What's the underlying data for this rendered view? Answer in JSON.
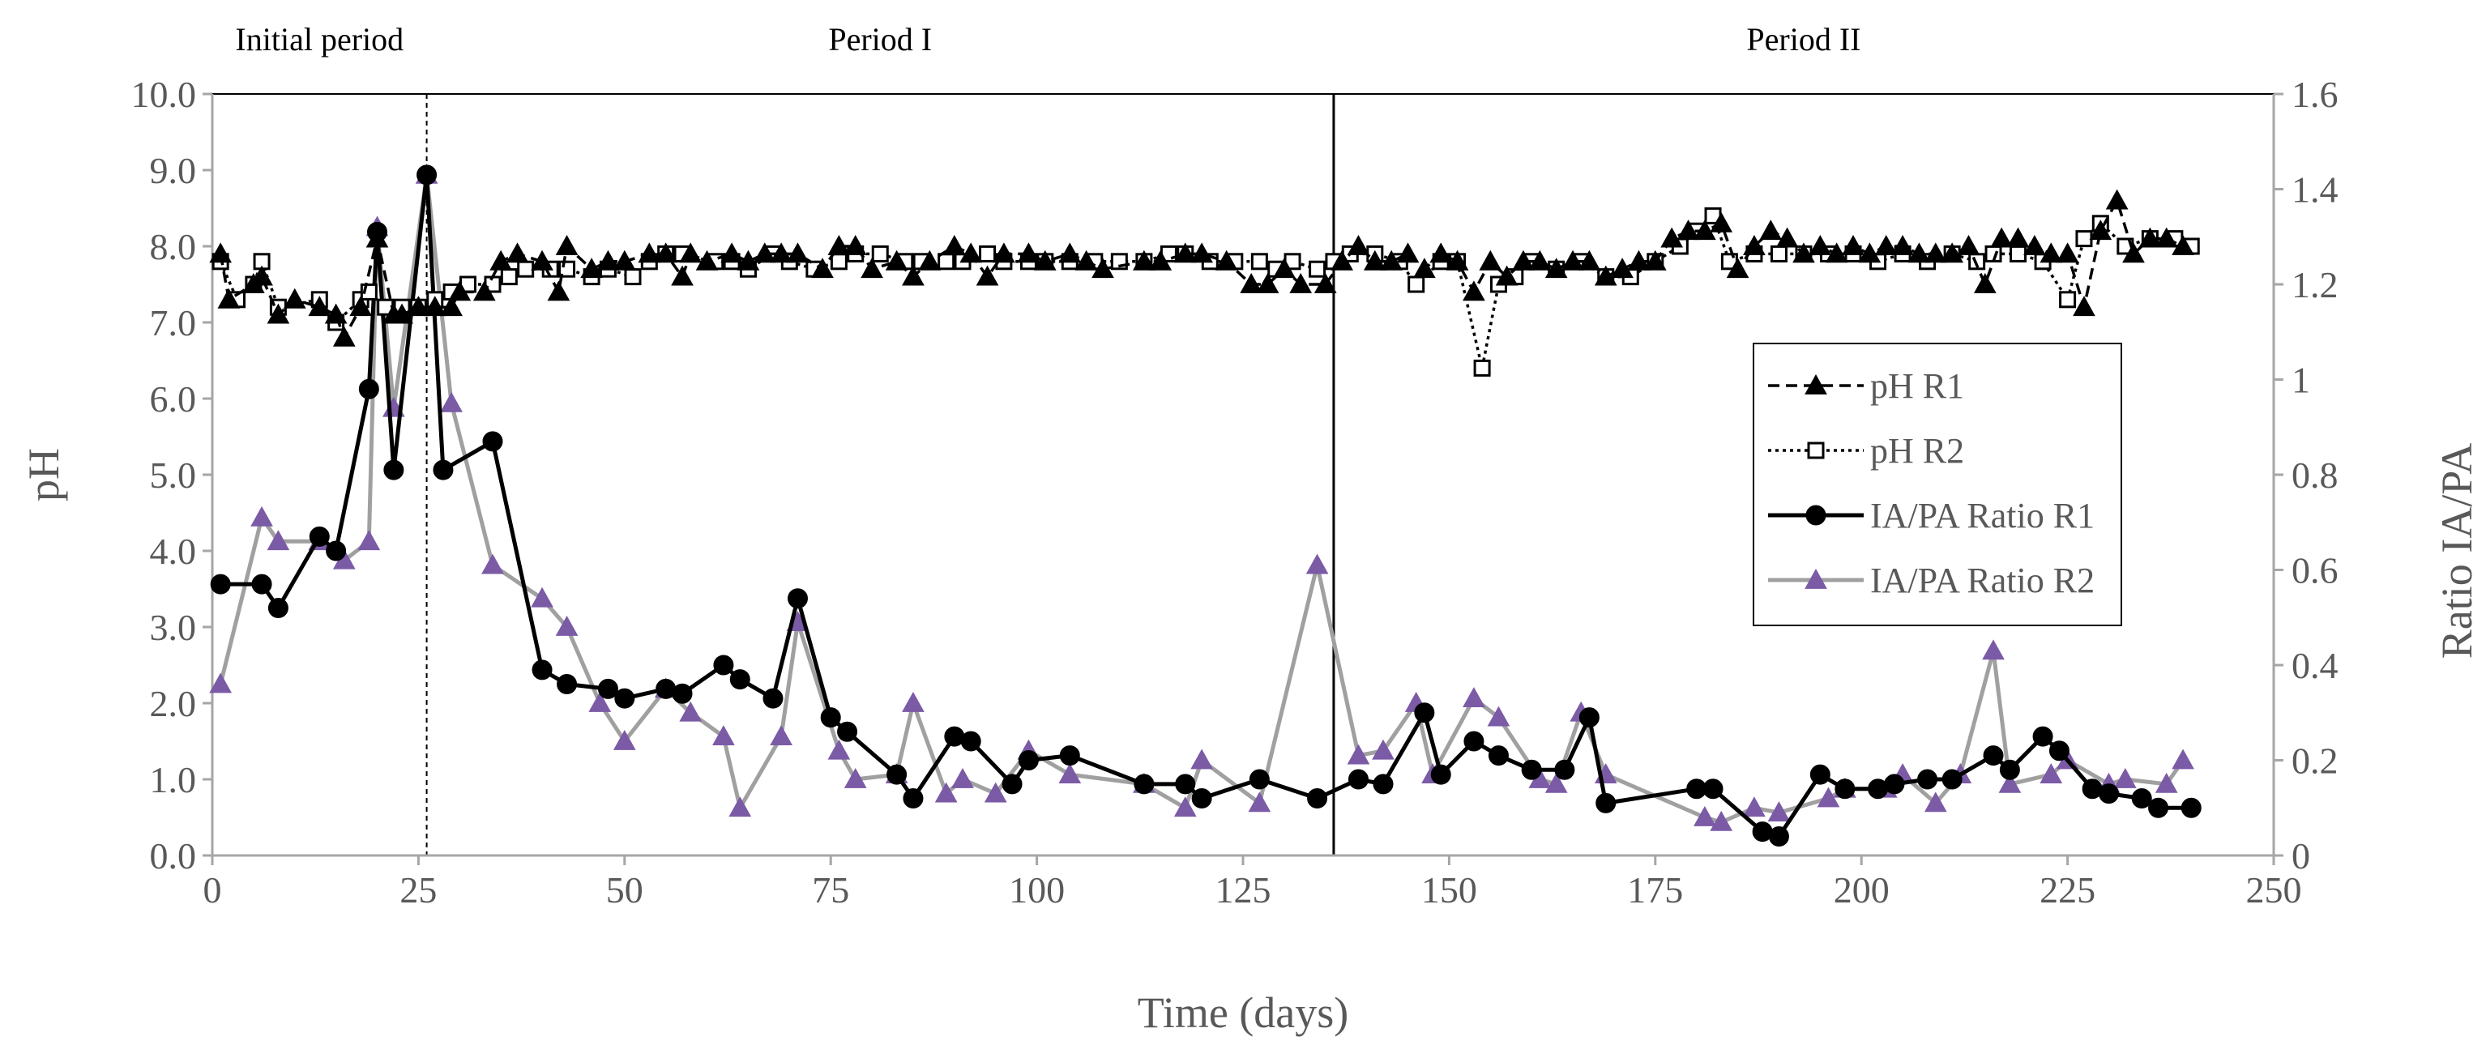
{
  "chart_data": {
    "type": "line",
    "title": "",
    "xlabel": "Time (days)",
    "ylabel_left": "pH",
    "ylabel_right": "Ratio  IA/PA",
    "xlim": [
      0,
      250
    ],
    "ylim_left": [
      0,
      10
    ],
    "ylim_right": [
      0,
      1.6
    ],
    "grid": false,
    "x_ticks": [
      "0",
      "25",
      "50",
      "75",
      "100",
      "125",
      "150",
      "175",
      "200",
      "225",
      "250"
    ],
    "y_left_ticks": [
      "0.0",
      "1.0",
      "2.0",
      "3.0",
      "4.0",
      "5.0",
      "6.0",
      "7.0",
      "8.0",
      "9.0",
      "10.0"
    ],
    "y_right_ticks": [
      "0",
      "0.2",
      "0.4",
      "0.6",
      "0.8",
      "1",
      "1.2",
      "1.4",
      "1.6"
    ],
    "periods": [
      {
        "label": "Initial period",
        "x_start": 0,
        "x_end": 26
      },
      {
        "label": "Period I",
        "x_start": 26,
        "x_end": 136
      },
      {
        "label": "Period II",
        "x_start": 136,
        "x_end": 250
      }
    ],
    "dividers": [
      {
        "x": 26,
        "style": "dashed"
      },
      {
        "x": 136,
        "style": "solid"
      }
    ],
    "legend_position": "right",
    "series": [
      {
        "name": "pH R1",
        "axis": "left",
        "color": "#000000",
        "line": "dashed",
        "marker": "triangle",
        "x": [
          1,
          2,
          5,
          6,
          8,
          10,
          13,
          15,
          16,
          18,
          20,
          22,
          23,
          25,
          27,
          29,
          30,
          33,
          35,
          37,
          40,
          42,
          43,
          46,
          48,
          50,
          53,
          55,
          57,
          58,
          60,
          63,
          65,
          67,
          69,
          71,
          74,
          76,
          78,
          80,
          83,
          85,
          87,
          90,
          92,
          94,
          96,
          99,
          101,
          104,
          106,
          108,
          113,
          115,
          118,
          120,
          123,
          126,
          128,
          130,
          132,
          135,
          137,
          139,
          141,
          143,
          145,
          147,
          149,
          151,
          153,
          155,
          157,
          159,
          161,
          163,
          165,
          167,
          169,
          171,
          173,
          175,
          177,
          179,
          181,
          183,
          185,
          187,
          189,
          191,
          193,
          195,
          197,
          199,
          201,
          203,
          205,
          207,
          209,
          211,
          213,
          215,
          217,
          219,
          221,
          223,
          225,
          227,
          229,
          231,
          233,
          235,
          237,
          239
        ],
        "y": [
          7.9,
          7.3,
          7.5,
          7.6,
          7.1,
          7.3,
          7.2,
          7.1,
          6.8,
          7.2,
          8.1,
          7.1,
          7.1,
          7.2,
          7.2,
          7.2,
          7.4,
          7.4,
          7.8,
          7.9,
          7.8,
          7.4,
          8.0,
          7.7,
          7.8,
          7.8,
          7.9,
          7.9,
          7.6,
          7.9,
          7.8,
          7.9,
          7.8,
          7.9,
          7.9,
          7.9,
          7.7,
          8.0,
          8.0,
          7.7,
          7.8,
          7.6,
          7.8,
          8.0,
          7.9,
          7.6,
          7.9,
          7.9,
          7.8,
          7.9,
          7.8,
          7.7,
          7.8,
          7.8,
          7.9,
          7.9,
          7.8,
          7.5,
          7.5,
          7.7,
          7.5,
          7.5,
          7.8,
          8.0,
          7.8,
          7.8,
          7.9,
          7.7,
          7.9,
          7.8,
          7.4,
          7.8,
          7.6,
          7.8,
          7.8,
          7.7,
          7.8,
          7.8,
          7.6,
          7.7,
          7.8,
          7.8,
          8.1,
          8.2,
          8.2,
          8.3,
          7.7,
          8.0,
          8.2,
          8.1,
          7.9,
          8.0,
          7.9,
          8.0,
          7.9,
          8.0,
          8.0,
          7.9,
          7.9,
          7.9,
          8.0,
          7.5,
          8.1,
          8.1,
          8.0,
          7.9,
          7.9,
          7.2,
          8.2,
          8.6,
          7.9,
          8.1,
          8.1,
          8.0
        ]
      },
      {
        "name": "pH R2",
        "axis": "left",
        "color": "#000000",
        "line": "dotted",
        "marker": "square-open",
        "x": [
          1,
          3,
          5,
          6,
          8,
          13,
          15,
          18,
          19,
          21,
          23,
          25,
          27,
          29,
          31,
          34,
          36,
          38,
          41,
          43,
          46,
          48,
          51,
          53,
          55,
          57,
          61,
          63,
          65,
          68,
          70,
          73,
          76,
          78,
          81,
          84,
          86,
          89,
          91,
          94,
          96,
          99,
          101,
          104,
          107,
          110,
          113,
          116,
          118,
          121,
          124,
          127,
          129,
          131,
          134,
          136,
          138,
          141,
          144,
          146,
          149,
          151,
          154,
          156,
          158,
          160,
          163,
          166,
          169,
          172,
          175,
          178,
          180,
          182,
          184,
          187,
          190,
          193,
          196,
          199,
          202,
          205,
          208,
          211,
          214,
          216,
          219,
          222,
          225,
          227,
          229,
          232,
          235,
          238,
          240
        ],
        "y": [
          7.8,
          7.3,
          7.5,
          7.8,
          7.2,
          7.3,
          7.0,
          7.3,
          7.4,
          7.2,
          7.2,
          7.2,
          7.3,
          7.4,
          7.5,
          7.5,
          7.6,
          7.7,
          7.7,
          7.7,
          7.6,
          7.7,
          7.6,
          7.8,
          7.9,
          7.9,
          7.8,
          7.8,
          7.7,
          7.9,
          7.8,
          7.7,
          7.8,
          7.9,
          7.9,
          7.8,
          7.8,
          7.8,
          7.8,
          7.9,
          7.8,
          7.8,
          7.8,
          7.8,
          7.8,
          7.8,
          7.8,
          7.9,
          7.9,
          7.8,
          7.8,
          7.8,
          7.7,
          7.8,
          7.7,
          7.8,
          7.9,
          7.9,
          7.8,
          7.5,
          7.8,
          7.8,
          6.4,
          7.5,
          7.6,
          7.8,
          7.7,
          7.8,
          7.6,
          7.6,
          7.8,
          8.0,
          8.2,
          8.4,
          7.8,
          7.9,
          7.9,
          7.9,
          7.9,
          7.9,
          7.8,
          7.9,
          7.8,
          7.9,
          7.8,
          7.9,
          7.9,
          7.8,
          7.3,
          8.1,
          8.3,
          8.0,
          8.1,
          8.1,
          8.0
        ]
      },
      {
        "name": "IA/PA Ratio  R1",
        "axis": "right",
        "color": "#000000",
        "line": "solid",
        "marker": "circle",
        "x": [
          1,
          6,
          8,
          13,
          15,
          19,
          20,
          22,
          26,
          28,
          34,
          40,
          43,
          48,
          50,
          55,
          57,
          62,
          64,
          68,
          71,
          75,
          77,
          83,
          85,
          90,
          92,
          97,
          99,
          104,
          113,
          118,
          120,
          127,
          134,
          139,
          142,
          147,
          149,
          153,
          156,
          160,
          164,
          167,
          169,
          180,
          182,
          188,
          190,
          195,
          198,
          202,
          204,
          208,
          211,
          216,
          218,
          222,
          224,
          228,
          230,
          234,
          236,
          240
        ],
        "y": [
          0.57,
          0.57,
          0.52,
          0.67,
          0.64,
          0.98,
          1.31,
          0.81,
          1.43,
          0.81,
          0.87,
          0.39,
          0.36,
          0.35,
          0.33,
          0.35,
          0.34,
          0.4,
          0.37,
          0.33,
          0.54,
          0.29,
          0.26,
          0.17,
          0.12,
          0.25,
          0.24,
          0.15,
          0.2,
          0.21,
          0.15,
          0.15,
          0.12,
          0.16,
          0.12,
          0.16,
          0.15,
          0.3,
          0.17,
          0.24,
          0.21,
          0.18,
          0.18,
          0.29,
          0.11,
          0.14,
          0.14,
          0.05,
          0.04,
          0.17,
          0.14,
          0.14,
          0.15,
          0.16,
          0.16,
          0.21,
          0.18,
          0.25,
          0.22,
          0.14,
          0.13,
          0.12,
          0.1,
          0.1
        ]
      },
      {
        "name": "IA/PA Ratio R2",
        "axis": "right",
        "color": "#a0a0a0",
        "marker_color": "#7b5aa6",
        "line": "solid",
        "marker": "triangle",
        "x": [
          1,
          6,
          8,
          13,
          16,
          19,
          20,
          22,
          26,
          29,
          34,
          40,
          43,
          47,
          50,
          55,
          58,
          62,
          64,
          69,
          71,
          76,
          78,
          83,
          85,
          89,
          91,
          95,
          99,
          104,
          113,
          118,
          120,
          127,
          134,
          139,
          142,
          146,
          148,
          153,
          156,
          161,
          163,
          166,
          169,
          181,
          183,
          187,
          190,
          196,
          198,
          203,
          205,
          209,
          212,
          216,
          218,
          223,
          225,
          230,
          232,
          237,
          239
        ],
        "y": [
          0.36,
          0.71,
          0.66,
          0.66,
          0.62,
          0.66,
          1.32,
          0.94,
          1.43,
          0.95,
          0.61,
          0.54,
          0.48,
          0.32,
          0.24,
          0.35,
          0.3,
          0.25,
          0.1,
          0.25,
          0.49,
          0.22,
          0.16,
          0.17,
          0.32,
          0.13,
          0.16,
          0.13,
          0.22,
          0.17,
          0.15,
          0.1,
          0.2,
          0.11,
          0.61,
          0.21,
          0.22,
          0.32,
          0.17,
          0.33,
          0.29,
          0.16,
          0.15,
          0.3,
          0.17,
          0.08,
          0.07,
          0.1,
          0.09,
          0.12,
          0.14,
          0.14,
          0.17,
          0.11,
          0.17,
          0.43,
          0.15,
          0.17,
          0.2,
          0.15,
          0.16,
          0.15,
          0.2
        ]
      }
    ]
  }
}
